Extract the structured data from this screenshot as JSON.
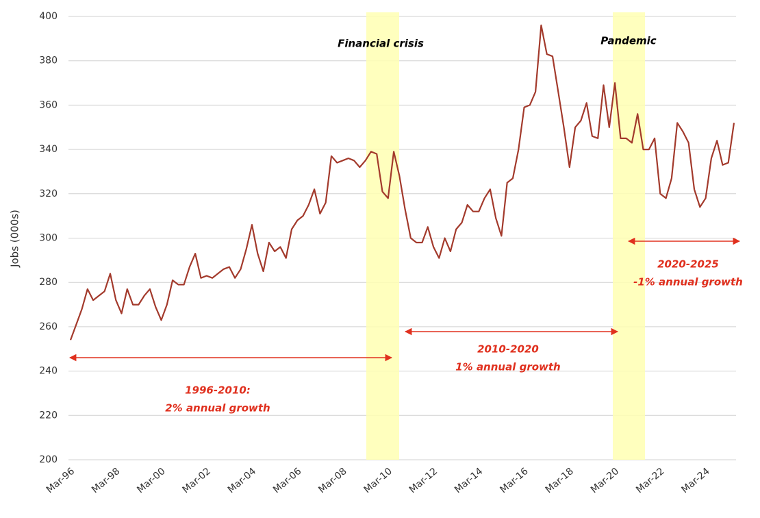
{
  "chart_data": {
    "type": "line",
    "y_label": "Jobs (000s)",
    "categories": [
      "Mar-96",
      null,
      null,
      null,
      null,
      null,
      null,
      null,
      "Mar-98",
      null,
      null,
      null,
      null,
      null,
      null,
      null,
      "Mar-00",
      null,
      null,
      null,
      null,
      null,
      null,
      null,
      "Mar-02",
      null,
      null,
      null,
      null,
      null,
      null,
      null,
      "Mar-04",
      null,
      null,
      null,
      null,
      null,
      null,
      null,
      "Mar-06",
      null,
      null,
      null,
      null,
      null,
      null,
      null,
      "Mar-08",
      null,
      null,
      null,
      null,
      null,
      null,
      null,
      "Mar-10",
      null,
      null,
      null,
      null,
      null,
      null,
      null,
      "Mar-12",
      null,
      null,
      null,
      null,
      null,
      null,
      null,
      "Mar-14",
      null,
      null,
      null,
      null,
      null,
      null,
      null,
      "Mar-16",
      null,
      null,
      null,
      null,
      null,
      null,
      null,
      "Mar-18",
      null,
      null,
      null,
      null,
      null,
      null,
      null,
      "Mar-20",
      null,
      null,
      null,
      null,
      null,
      null,
      null,
      "Mar-22",
      null,
      null,
      null,
      null,
      null,
      null,
      null,
      "Mar-24",
      null,
      null,
      null,
      null,
      null
    ],
    "series": [
      {
        "name": "Jobs",
        "color": "#a33a2c",
        "values": [
          254,
          261,
          268,
          277,
          272,
          274,
          276,
          284,
          272,
          266,
          277,
          270,
          270,
          274,
          277,
          269,
          263,
          270,
          281,
          279,
          279,
          287,
          293,
          282,
          283,
          282,
          284,
          286,
          287,
          282,
          286,
          295,
          306,
          293,
          285,
          298,
          294,
          296,
          291,
          304,
          308,
          310,
          315,
          322,
          311,
          316,
          337,
          334,
          335,
          336,
          335,
          332,
          335,
          339,
          338,
          321,
          318,
          339,
          328,
          313,
          300,
          298,
          298,
          305,
          296,
          291,
          300,
          294,
          304,
          307,
          315,
          312,
          312,
          318,
          322,
          309,
          301,
          325,
          327,
          340,
          359,
          360,
          366,
          396,
          383,
          382,
          366,
          350,
          332,
          350,
          353,
          361,
          346,
          345,
          369,
          350,
          370,
          345,
          345,
          343,
          356,
          340,
          340,
          345,
          320,
          318,
          327,
          352,
          348,
          343,
          322,
          314,
          318,
          336,
          344,
          333,
          334,
          352
        ]
      }
    ],
    "ylim": [
      200,
      400
    ],
    "yticks": [
      200,
      220,
      240,
      260,
      280,
      300,
      320,
      340,
      360,
      380,
      400
    ],
    "grid": true,
    "annotations": [
      {
        "lines": [
          "Financial crisis"
        ]
      },
      {
        "lines": [
          "Pandemic"
        ]
      },
      {
        "lines": [
          "1996-2010:",
          "2% annual growth"
        ]
      },
      {
        "lines": [
          "2010-2020",
          "1% annual growth"
        ]
      },
      {
        "lines": [
          "2020-2025",
          "-1% annual growth"
        ]
      }
    ]
  }
}
